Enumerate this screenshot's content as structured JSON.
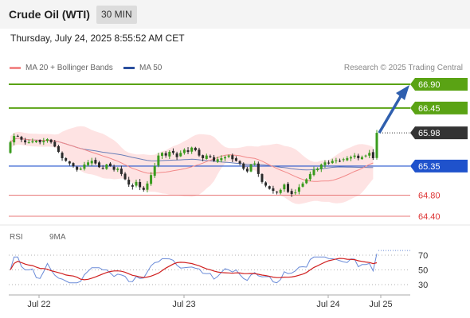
{
  "header": {
    "title": "Crude Oil (WTI)",
    "timeframe": "30 MIN",
    "datetime": "Thursday, July 24, 2025 8:55:52 AM CET"
  },
  "legend": {
    "ma20": "MA 20 + Bollinger Bands",
    "ma50": "MA 50",
    "research": "Research © 2025 Trading Central"
  },
  "rsi_legend": {
    "rsi": "RSI",
    "ma9": "9MA"
  },
  "colors": {
    "green_level": "#5aa314",
    "blue_level": "#1f52cc",
    "red_level": "#e87878",
    "current": "#333333",
    "bollinger": "#fddada",
    "ma20": "#f28a8a",
    "ma50": "#6a7fb8",
    "arrow": "#2f5fae",
    "rsi": "#6a8bd8",
    "rsi_ma": "#d02020"
  },
  "chart_data": {
    "type": "candlestick",
    "instrument": "Crude Oil (WTI)",
    "interval": "30 MIN",
    "ylim": [
      64.3,
      66.95
    ],
    "levels": [
      {
        "value": 66.9,
        "label": "66.90",
        "kind": "resistance"
      },
      {
        "value": 66.45,
        "label": "66.45",
        "kind": "resistance"
      },
      {
        "value": 65.98,
        "label": "65.98",
        "kind": "current"
      },
      {
        "value": 65.35,
        "label": "65.35",
        "kind": "pivot"
      },
      {
        "value": 64.8,
        "label": "64.80",
        "kind": "support"
      },
      {
        "value": 64.4,
        "label": "64.40",
        "kind": "support"
      }
    ],
    "x_ticks": [
      "Jul 22",
      "Jul 23",
      "Jul 24",
      "Jul 25"
    ],
    "closes": [
      65.8,
      65.92,
      65.92,
      65.85,
      65.8,
      65.8,
      65.82,
      65.83,
      65.8,
      65.83,
      65.86,
      65.8,
      65.72,
      65.62,
      65.5,
      65.45,
      65.4,
      65.35,
      65.28,
      65.3,
      65.38,
      65.42,
      65.45,
      65.4,
      65.33,
      65.3,
      65.38,
      65.35,
      65.28,
      65.3,
      65.2,
      65.1,
      65.0,
      64.96,
      65.05,
      64.95,
      64.9,
      65.02,
      65.18,
      65.35,
      65.55,
      65.6,
      65.55,
      65.62,
      65.6,
      65.52,
      65.6,
      65.66,
      65.62,
      65.7,
      65.65,
      65.55,
      65.5,
      65.55,
      65.52,
      65.45,
      65.48,
      65.5,
      65.52,
      65.55,
      65.48,
      65.45,
      65.4,
      65.3,
      65.25,
      65.38,
      65.4,
      65.2,
      65.05,
      64.98,
      64.92,
      64.88,
      64.85,
      64.9,
      65.0,
      64.86,
      64.82,
      64.85,
      64.95,
      65.02,
      65.1,
      65.2,
      65.28,
      65.3,
      65.38,
      65.42,
      65.4,
      65.45,
      65.46,
      65.45,
      65.48,
      65.5,
      65.52,
      65.55,
      65.5,
      65.52,
      65.55,
      65.6,
      65.5,
      65.98
    ],
    "rsi": {
      "levels": [
        70,
        50,
        30
      ],
      "last": 72
    }
  }
}
